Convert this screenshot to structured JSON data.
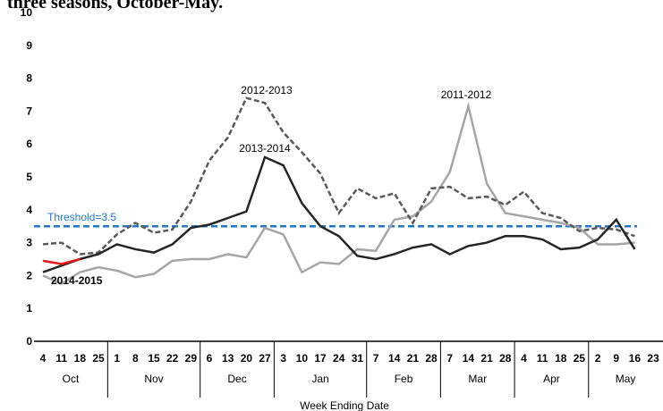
{
  "chart_data": {
    "type": "line",
    "title": "three seasons, October-May.",
    "x_label": "Week Ending Date",
    "ylim": [
      0,
      10
    ],
    "yticks": [
      0,
      1,
      2,
      3,
      4,
      5,
      6,
      7,
      8,
      9,
      10
    ],
    "groups": [
      {
        "label": "Oct",
        "categories": [
          "4",
          "11",
          "18",
          "25"
        ]
      },
      {
        "label": "Nov",
        "categories": [
          "1",
          "8",
          "15",
          "22",
          "29"
        ]
      },
      {
        "label": "Dec",
        "categories": [
          "6",
          "13",
          "20",
          "27"
        ]
      },
      {
        "label": "Jan",
        "categories": [
          "3",
          "10",
          "17",
          "24",
          "31"
        ]
      },
      {
        "label": "Feb",
        "categories": [
          "7",
          "14",
          "21",
          "28"
        ]
      },
      {
        "label": "Mar",
        "categories": [
          "7",
          "14",
          "21",
          "28"
        ]
      },
      {
        "label": "Apr",
        "categories": [
          "4",
          "11",
          "18",
          "25"
        ]
      },
      {
        "label": "May",
        "categories": [
          "2",
          "9",
          "16",
          "23"
        ]
      }
    ],
    "series": [
      {
        "name": "2011-2012",
        "color": "#a6a6a6",
        "line_style": "solid",
        "values": [
          2.0,
          1.75,
          2.1,
          2.25,
          2.15,
          1.95,
          2.05,
          2.45,
          2.5,
          2.5,
          2.65,
          2.55,
          3.45,
          3.25,
          2.1,
          2.4,
          2.35,
          2.8,
          2.75,
          3.7,
          3.8,
          4.25,
          5.15,
          7.15,
          4.8,
          3.9,
          3.8,
          3.7,
          3.6,
          3.45,
          2.95,
          2.95,
          3.0,
          null
        ]
      },
      {
        "name": "2012-2013",
        "color": "#595959",
        "line_style": "dashed",
        "values": [
          2.95,
          3.0,
          2.65,
          2.7,
          3.25,
          3.6,
          3.3,
          3.4,
          4.25,
          5.5,
          6.2,
          7.4,
          7.25,
          6.35,
          5.75,
          5.1,
          3.9,
          4.65,
          4.35,
          4.5,
          3.6,
          4.65,
          4.7,
          4.35,
          4.4,
          4.15,
          4.55,
          3.9,
          3.75,
          3.35,
          3.45,
          3.4,
          3.2,
          null
        ]
      },
      {
        "name": "2013-2014",
        "color": "#262626",
        "line_style": "solid",
        "values": [
          2.1,
          2.3,
          2.5,
          2.65,
          2.95,
          2.8,
          2.7,
          2.95,
          3.45,
          3.55,
          3.75,
          3.95,
          5.6,
          5.35,
          4.2,
          3.5,
          3.2,
          2.6,
          2.5,
          2.65,
          2.85,
          2.95,
          2.65,
          2.9,
          3.0,
          3.2,
          3.2,
          3.1,
          2.8,
          2.85,
          3.1,
          3.7,
          2.8,
          null
        ]
      },
      {
        "name": "2014-2015",
        "color": "#e8191b",
        "line_style": "solid",
        "values": [
          2.45,
          2.35,
          2.5,
          null,
          null,
          null,
          null,
          null,
          null,
          null,
          null,
          null,
          null,
          null,
          null,
          null,
          null,
          null,
          null,
          null,
          null,
          null,
          null,
          null,
          null,
          null,
          null,
          null,
          null,
          null,
          null,
          null,
          null,
          null
        ]
      }
    ],
    "threshold": {
      "value": 3.5,
      "label": "Threshold=3.5",
      "color": "#1f78c8"
    }
  }
}
